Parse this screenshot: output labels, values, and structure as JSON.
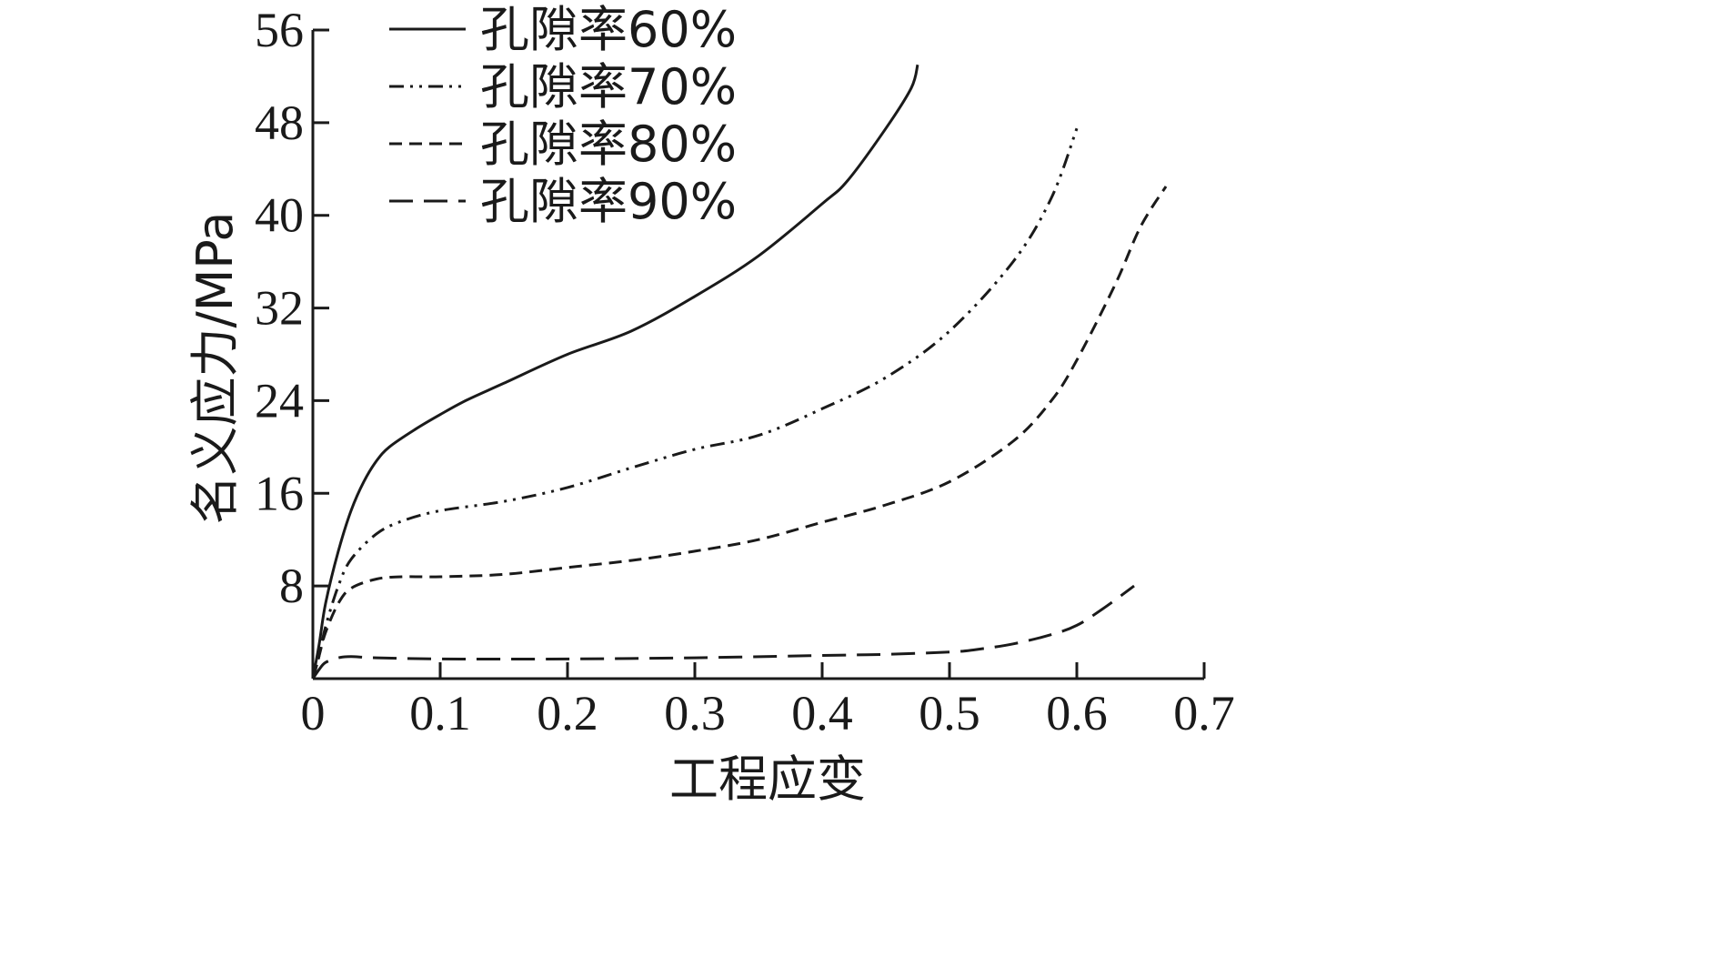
{
  "chart_data": {
    "type": "line",
    "title": "",
    "xlabel": "工程应变",
    "ylabel": "名义应力/MPa",
    "xlim": [
      0,
      0.7
    ],
    "ylim": [
      0,
      56
    ],
    "x_ticks": [
      0,
      0.1,
      0.2,
      0.3,
      0.4,
      0.5,
      0.6,
      0.7
    ],
    "x_tick_labels": [
      "0",
      "0.1",
      "0.2",
      "0.3",
      "0.4",
      "0.5",
      "0.6",
      "0.7"
    ],
    "y_ticks": [
      8,
      16,
      24,
      32,
      40,
      48,
      56
    ],
    "y_tick_labels": [
      "8",
      "16",
      "24",
      "32",
      "40",
      "48",
      "56"
    ],
    "grid": false,
    "legend_position": "top-left",
    "series": [
      {
        "name": "孔隙率60%",
        "dash": "solid",
        "color": "#1a1a1a",
        "points": [
          [
            0,
            0
          ],
          [
            0.005,
            3
          ],
          [
            0.01,
            6.5
          ],
          [
            0.02,
            11
          ],
          [
            0.03,
            14.5
          ],
          [
            0.04,
            17
          ],
          [
            0.05,
            18.8
          ],
          [
            0.06,
            20
          ],
          [
            0.08,
            21.5
          ],
          [
            0.1,
            22.8
          ],
          [
            0.12,
            24
          ],
          [
            0.15,
            25.5
          ],
          [
            0.2,
            28
          ],
          [
            0.25,
            30
          ],
          [
            0.3,
            33
          ],
          [
            0.35,
            36.5
          ],
          [
            0.4,
            41
          ],
          [
            0.42,
            43
          ],
          [
            0.45,
            47.5
          ],
          [
            0.47,
            51
          ],
          [
            0.475,
            53
          ]
        ]
      },
      {
        "name": "孔隙率70%",
        "dash": "dashdotdot",
        "color": "#1a1a1a",
        "points": [
          [
            0,
            0
          ],
          [
            0.005,
            2
          ],
          [
            0.01,
            4.5
          ],
          [
            0.02,
            8
          ],
          [
            0.03,
            10.3
          ],
          [
            0.05,
            12.5
          ],
          [
            0.07,
            13.6
          ],
          [
            0.1,
            14.5
          ],
          [
            0.15,
            15.3
          ],
          [
            0.2,
            16.5
          ],
          [
            0.25,
            18.2
          ],
          [
            0.3,
            19.8
          ],
          [
            0.35,
            21
          ],
          [
            0.4,
            23.3
          ],
          [
            0.45,
            26
          ],
          [
            0.5,
            30
          ],
          [
            0.55,
            36
          ],
          [
            0.58,
            41.5
          ],
          [
            0.6,
            47.5
          ]
        ]
      },
      {
        "name": "孔隙率80%",
        "dash": "dash",
        "color": "#1a1a1a",
        "points": [
          [
            0,
            0
          ],
          [
            0.005,
            2
          ],
          [
            0.01,
            4
          ],
          [
            0.02,
            6.5
          ],
          [
            0.03,
            7.8
          ],
          [
            0.05,
            8.6
          ],
          [
            0.07,
            8.8
          ],
          [
            0.1,
            8.8
          ],
          [
            0.15,
            9
          ],
          [
            0.2,
            9.6
          ],
          [
            0.25,
            10.2
          ],
          [
            0.3,
            11
          ],
          [
            0.35,
            12
          ],
          [
            0.4,
            13.5
          ],
          [
            0.45,
            15
          ],
          [
            0.5,
            17
          ],
          [
            0.55,
            20.5
          ],
          [
            0.58,
            24
          ],
          [
            0.6,
            27.5
          ],
          [
            0.63,
            34
          ],
          [
            0.65,
            39
          ],
          [
            0.67,
            42.5
          ]
        ]
      },
      {
        "name": "孔隙率90%",
        "dash": "longdash",
        "color": "#1a1a1a",
        "points": [
          [
            0,
            0
          ],
          [
            0.005,
            0.8
          ],
          [
            0.01,
            1.4
          ],
          [
            0.02,
            1.8
          ],
          [
            0.03,
            1.9
          ],
          [
            0.05,
            1.8
          ],
          [
            0.1,
            1.7
          ],
          [
            0.2,
            1.7
          ],
          [
            0.3,
            1.8
          ],
          [
            0.4,
            2
          ],
          [
            0.45,
            2.1
          ],
          [
            0.5,
            2.3
          ],
          [
            0.52,
            2.5
          ],
          [
            0.55,
            3
          ],
          [
            0.58,
            3.8
          ],
          [
            0.6,
            4.6
          ],
          [
            0.62,
            6
          ],
          [
            0.645,
            8
          ]
        ]
      }
    ]
  }
}
